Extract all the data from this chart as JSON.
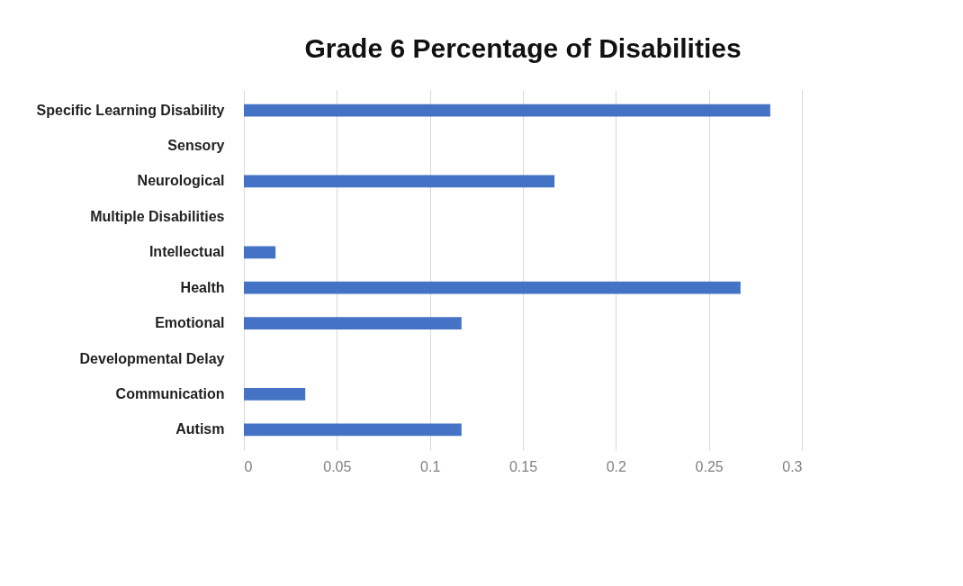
{
  "chart_data": {
    "type": "bar",
    "orientation": "horizontal",
    "title": "Grade 6 Percentage of Disabilities",
    "categories": [
      "Specific Learning Disability",
      "Sensory",
      "Neurological ",
      "Multiple Disabilities",
      "Intellectual",
      "Health",
      "Emotional",
      "Developmental Delay",
      "Communication",
      "Autism"
    ],
    "values": [
      0.283,
      0,
      0.167,
      0,
      0.017,
      0.267,
      0.117,
      0,
      0.033,
      0.117
    ],
    "color": "#4472c4",
    "xlim": [
      0,
      0.3
    ],
    "xticks": [
      0,
      0.05,
      0.1,
      0.15,
      0.2,
      0.25,
      0.3
    ],
    "grid": "x"
  }
}
